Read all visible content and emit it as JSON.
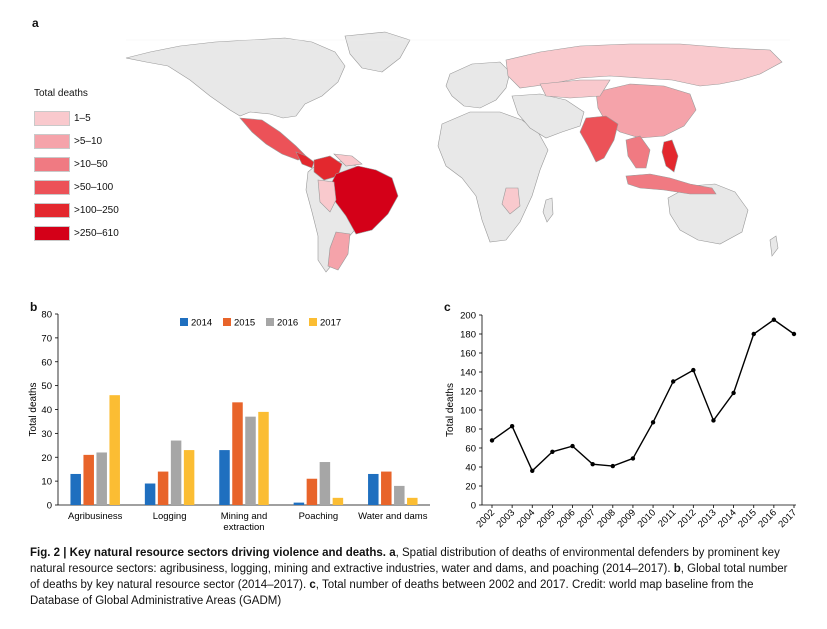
{
  "panels": {
    "a": "a",
    "b": "b",
    "c": "c"
  },
  "map": {
    "legend_title": "Total deaths",
    "legend": [
      {
        "label": "1–5",
        "color": "#f9c9cd"
      },
      {
        "label": ">5–10",
        "color": "#f5a3aa"
      },
      {
        "label": ">10–50",
        "color": "#f07a82"
      },
      {
        "label": ">50–100",
        "color": "#ec5258"
      },
      {
        "label": ">100–250",
        "color": "#e3282e"
      },
      {
        "label": ">250–610",
        "color": "#d40018"
      }
    ],
    "colors": {
      "no_data": "#e8e8e8",
      "border": "#9a9a9a",
      "ocean": "#ffffff"
    }
  },
  "chart_data": [
    {
      "type": "bar",
      "categories": [
        "Agribusiness",
        "Logging",
        "Mining and extraction",
        "Poaching",
        "Water and dams"
      ],
      "category_lines": [
        [
          "Agribusiness"
        ],
        [
          "Logging"
        ],
        [
          "Mining and",
          "extraction"
        ],
        [
          "Poaching"
        ],
        [
          "Water and dams"
        ]
      ],
      "series": [
        {
          "name": "2014",
          "color": "#1f6fbf",
          "values": [
            13,
            9,
            23,
            1,
            13
          ]
        },
        {
          "name": "2015",
          "color": "#e8642a",
          "values": [
            21,
            14,
            43,
            11,
            14
          ]
        },
        {
          "name": "2016",
          "color": "#a6a6a6",
          "values": [
            22,
            27,
            37,
            18,
            8
          ]
        },
        {
          "name": "2017",
          "color": "#fbbd33",
          "values": [
            46,
            23,
            39,
            3,
            3
          ]
        }
      ],
      "ylabel": "Total deaths",
      "ylim": [
        0,
        80
      ],
      "yticks": [
        0,
        10,
        20,
        30,
        40,
        50,
        60,
        70,
        80
      ],
      "legend_position": "top"
    },
    {
      "type": "line",
      "x": [
        "2002",
        "2003",
        "2004",
        "2005",
        "2006",
        "2007",
        "2008",
        "2009",
        "2010",
        "2011",
        "2012",
        "2013",
        "2014",
        "2015",
        "2016",
        "2017"
      ],
      "y": [
        68,
        83,
        36,
        56,
        62,
        43,
        41,
        49,
        87,
        130,
        142,
        89,
        118,
        180,
        195,
        180
      ],
      "ylabel": "Total deaths",
      "ylim": [
        0,
        200
      ],
      "yticks": [
        0,
        20,
        40,
        60,
        80,
        100,
        120,
        140,
        160,
        180,
        200
      ],
      "color": "#000000"
    }
  ],
  "caption": {
    "fig_label": "Fig. 2 | Key natural resource sectors driving violence and deaths.",
    "a_letter": "a",
    "a_text": ", Spatial distribution of deaths of environmental defenders by prominent key natural resource sectors: agribusiness, logging, mining and extractive industries, water and dams, and poaching (2014–2017). ",
    "b_letter": "b",
    "b_text": ", Global total number of deaths by key natural resource sector (2014–2017). ",
    "c_letter": "c",
    "c_text": ", Total number of deaths between 2002 and 2017. Credit: world map baseline from the Database of Global Administrative Areas (GADM)"
  }
}
